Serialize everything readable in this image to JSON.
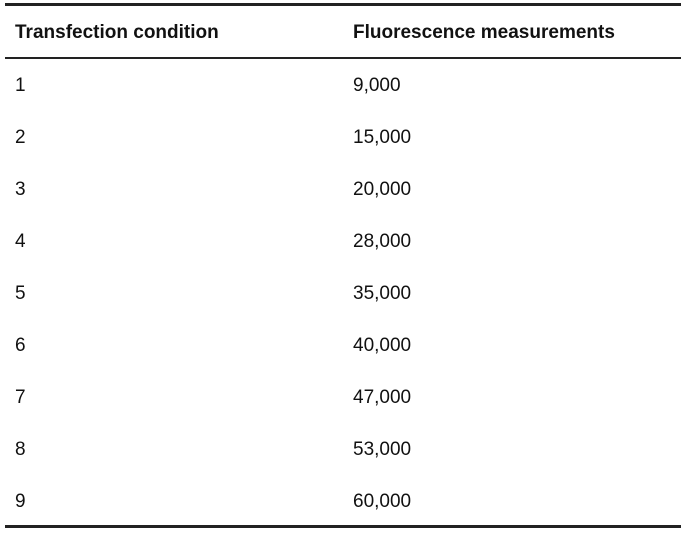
{
  "table": {
    "header": [
      "Transfection condition",
      "Fluorescence measurements"
    ],
    "rows": [
      [
        "1",
        "9,000"
      ],
      [
        "2",
        "15,000"
      ],
      [
        "3",
        "20,000"
      ],
      [
        "4",
        "28,000"
      ],
      [
        "5",
        "35,000"
      ],
      [
        "6",
        "40,000"
      ],
      [
        "7",
        "47,000"
      ],
      [
        "8",
        "53,000"
      ],
      [
        "9",
        "60,000"
      ]
    ]
  }
}
